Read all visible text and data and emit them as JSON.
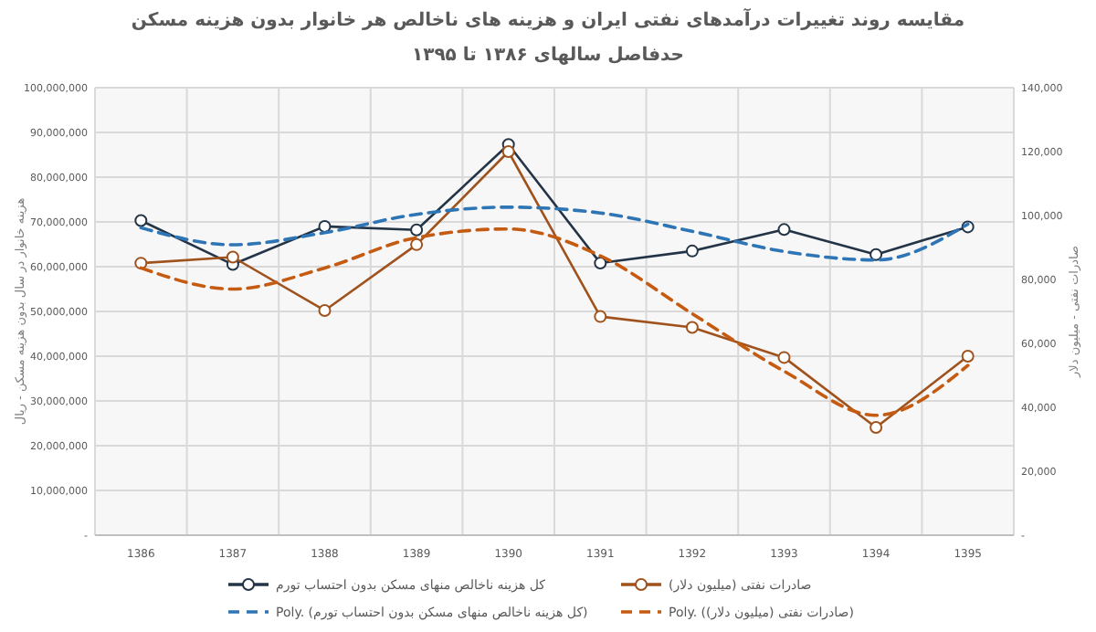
{
  "chart_data": {
    "type": "line",
    "title": "مقایسه روند تغییرات درآمدهای نفتی ایران و هزینه های ناخالص هر خانوار بدون هزینه مسکن",
    "subtitle": "حدفاصل سالهای ۱۳۸۶ تا ۱۳۹۵",
    "ylabel": "هزینه خانوار در سال بدون هزینه مسکن - ریال",
    "y2label": "صادرات نفتی - میلیون دلار",
    "categories": [
      "1386",
      "1387",
      "1388",
      "1389",
      "1390",
      "1391",
      "1392",
      "1393",
      "1394",
      "1395"
    ],
    "ylim": [
      0,
      100000000
    ],
    "yticks": [
      {
        "value": 0,
        "label": "-"
      },
      {
        "value": 10000000,
        "label": "10,000,000"
      },
      {
        "value": 20000000,
        "label": "20,000,000"
      },
      {
        "value": 30000000,
        "label": "30,000,000"
      },
      {
        "value": 40000000,
        "label": "40,000,000"
      },
      {
        "value": 50000000,
        "label": "50,000,000"
      },
      {
        "value": 60000000,
        "label": "60,000,000"
      },
      {
        "value": 70000000,
        "label": "70,000,000"
      },
      {
        "value": 80000000,
        "label": "80,000,000"
      },
      {
        "value": 90000000,
        "label": "90,000,000"
      },
      {
        "value": 100000000,
        "label": "100,000,000"
      }
    ],
    "y2lim": [
      0,
      140000
    ],
    "y2ticks": [
      {
        "value": 0,
        "label": "-"
      },
      {
        "value": 20000,
        "label": "20,000"
      },
      {
        "value": 40000,
        "label": "40,000"
      },
      {
        "value": 60000,
        "label": "60,000"
      },
      {
        "value": 80000,
        "label": "80,000"
      },
      {
        "value": 100000,
        "label": "100,000"
      },
      {
        "value": 120000,
        "label": "120,000"
      },
      {
        "value": 140000,
        "label": "140,000"
      }
    ],
    "grid": true,
    "legend": "bottom",
    "series": [
      {
        "name": "کل هزینه ناخالص منهای مسکن بدون احتساب تورم",
        "color": "#243447",
        "marker": "circle",
        "line_style": "solid",
        "values": [
          70300000,
          60500000,
          69000000,
          68200000,
          87300000,
          60800000,
          63500000,
          68300000,
          62700000,
          68900000
        ]
      },
      {
        "name": "صادرات نفتی (میلیون دلار)",
        "color": "#a0521d",
        "marker": "circle",
        "line_style": "solid",
        "axis": "y2",
        "values": [
          85100,
          87000,
          70300,
          90900,
          120000,
          68400,
          65000,
          55600,
          33700,
          56000
        ]
      },
      {
        "name": "Poly. (کل هزینه ناخالص منهای مسکن بدون احتساب تورم)",
        "color": "#2e75b6",
        "marker": "none",
        "line_style": "dashed",
        "values": [
          68700000,
          64900000,
          67600000,
          71700000,
          73300000,
          72000000,
          67900000,
          63400000,
          61500000,
          69500000
        ]
      },
      {
        "name": "Poly. (صادرات نفتی (میلیون دلار))",
        "color": "#c55a11",
        "marker": "none",
        "line_style": "dashed",
        "axis": "y2",
        "values": [
          83600,
          77000,
          83600,
          93100,
          95800,
          87400,
          69300,
          51300,
          37500,
          53100
        ]
      }
    ]
  }
}
